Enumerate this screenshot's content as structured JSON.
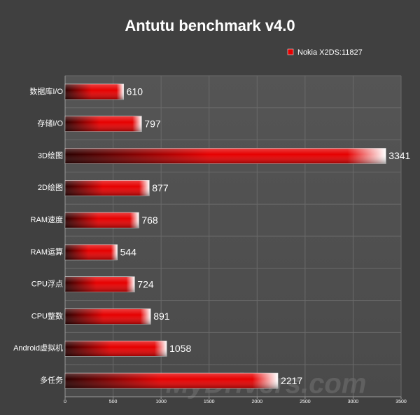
{
  "chart_data": {
    "type": "bar",
    "orientation": "horizontal",
    "title": "Antutu benchmark v4.0",
    "categories": [
      "数据库I/O",
      "存储I/O",
      "3D绘图",
      "2D绘图",
      "RAM速度",
      "RAM运算",
      "CPU浮点",
      "CPU整数",
      "Android虚拟机",
      "多任务"
    ],
    "series": [
      {
        "name": "Nokia X2DS:11827",
        "color": "#e60000",
        "values": [
          610,
          797,
          3341,
          877,
          768,
          544,
          724,
          891,
          1058,
          2217
        ]
      }
    ],
    "xlim": [
      0,
      3500
    ],
    "xticks": [
      0,
      500,
      1000,
      1500,
      2000,
      2500,
      3000,
      3500
    ],
    "grid": true,
    "legend": "top-right",
    "watermark": "MyDrivers.com"
  }
}
